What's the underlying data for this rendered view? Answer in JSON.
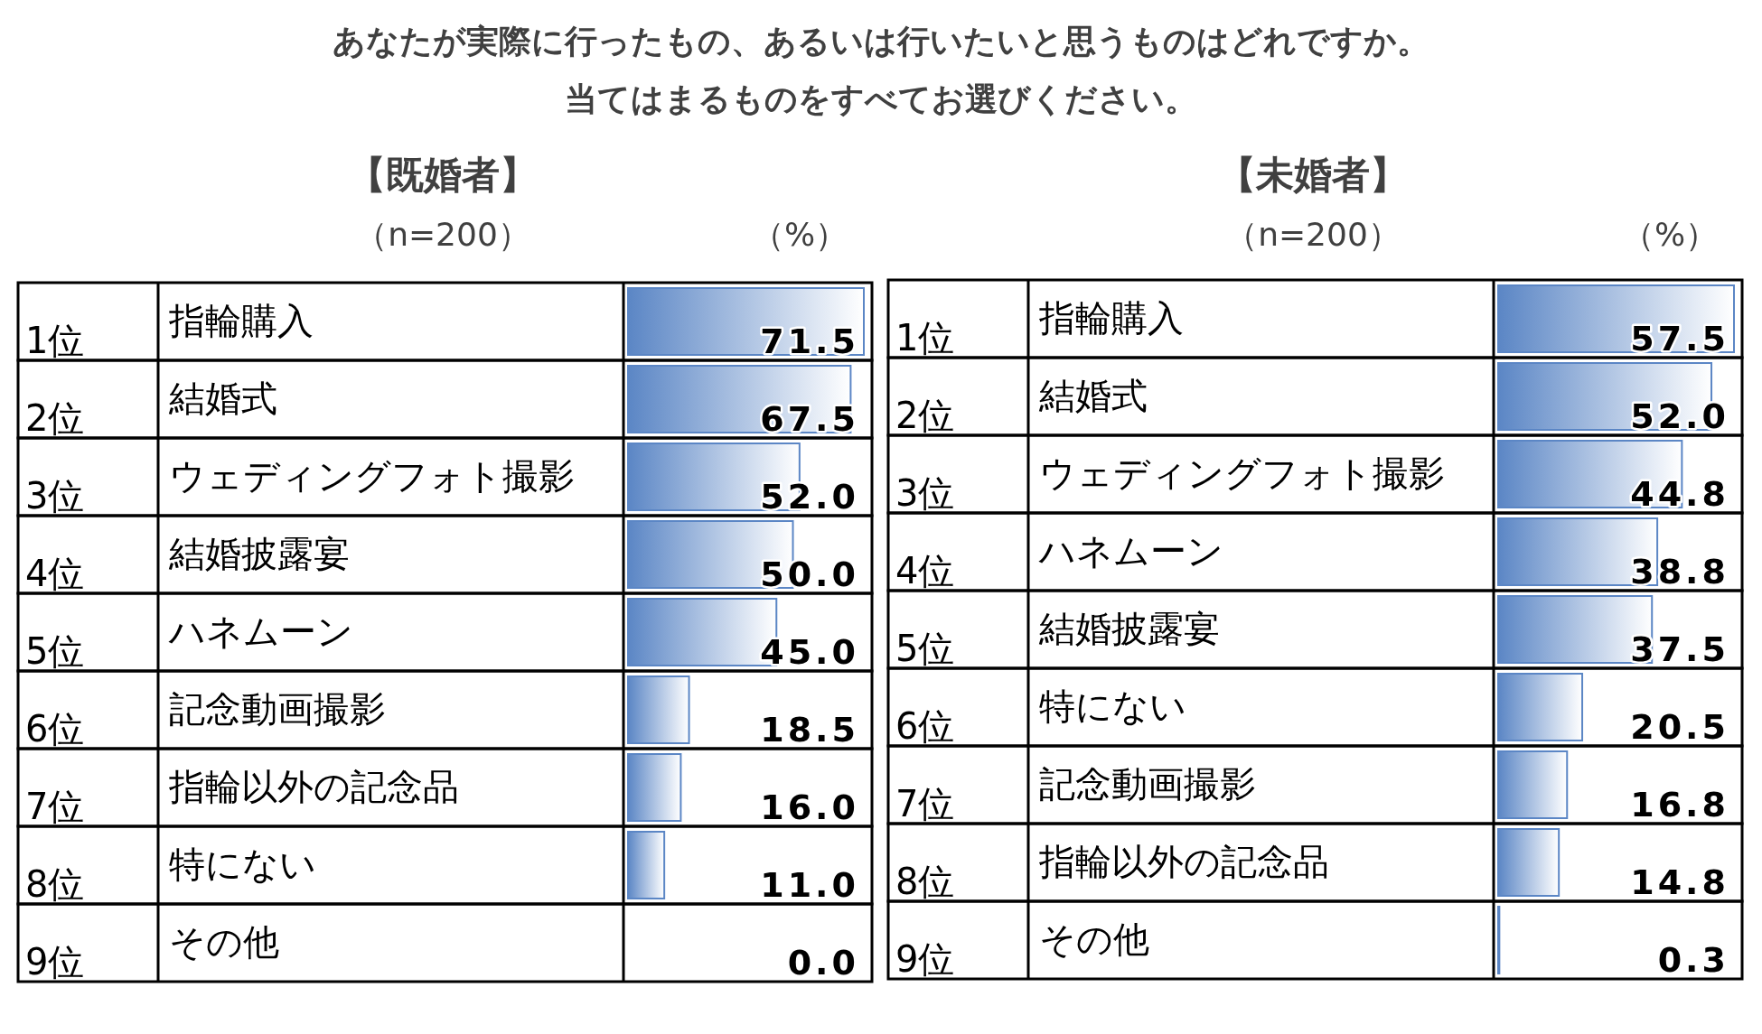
{
  "chart_data": [
    {
      "type": "other",
      "title": "あなたが実際に行ったもの、あるいは行いたいと思うものはどれですか。",
      "subtitle": "当てはまるものをすべてお選びください。"
    },
    {
      "type": "bar",
      "orientation": "horizontal",
      "title": "【既婚者】",
      "subtitle": "（n=200）",
      "xlabel": "（%）",
      "categories": [
        "指輪購入",
        "結婚式",
        "ウェディングフォト撮影",
        "結婚披露宴",
        "ハネムーン",
        "記念動画撮影",
        "指輪以外の記念品",
        "特にない",
        "その他"
      ],
      "values": [
        71.5,
        67.5,
        52.0,
        50.0,
        45.0,
        18.5,
        16.0,
        11.0,
        0.0
      ],
      "value_labels": [
        "71.5",
        "67.5",
        "52.0",
        "50.0",
        "45.0",
        "18.5",
        "16.0",
        "11.0",
        "0.0"
      ],
      "color": "#5b86c5",
      "annotations": [
        "1位",
        "2位",
        "3位",
        "4位",
        "5位",
        "6位",
        "7位",
        "8位",
        "9位"
      ]
    },
    {
      "type": "bar",
      "orientation": "horizontal",
      "title": "【未婚者】",
      "subtitle": "（n=200）",
      "xlabel": "（%）",
      "categories": [
        "指輪購入",
        "結婚式",
        "ウェディングフォト撮影",
        "ハネムーン",
        "結婚披露宴",
        "特にない",
        "記念動画撮影",
        "指輪以外の記念品",
        "その他"
      ],
      "values": [
        57.5,
        52.0,
        44.8,
        38.8,
        37.5,
        20.5,
        16.8,
        14.8,
        0.3
      ],
      "value_labels": [
        "57.5",
        "52.0",
        "44.8",
        "38.8",
        "37.5",
        "20.5",
        "16.8",
        "14.8",
        "0.3"
      ],
      "color": "#5b86c5",
      "annotations": [
        "1位",
        "2位",
        "3位",
        "4位",
        "5位",
        "6位",
        "7位",
        "8位",
        "9位"
      ]
    }
  ]
}
